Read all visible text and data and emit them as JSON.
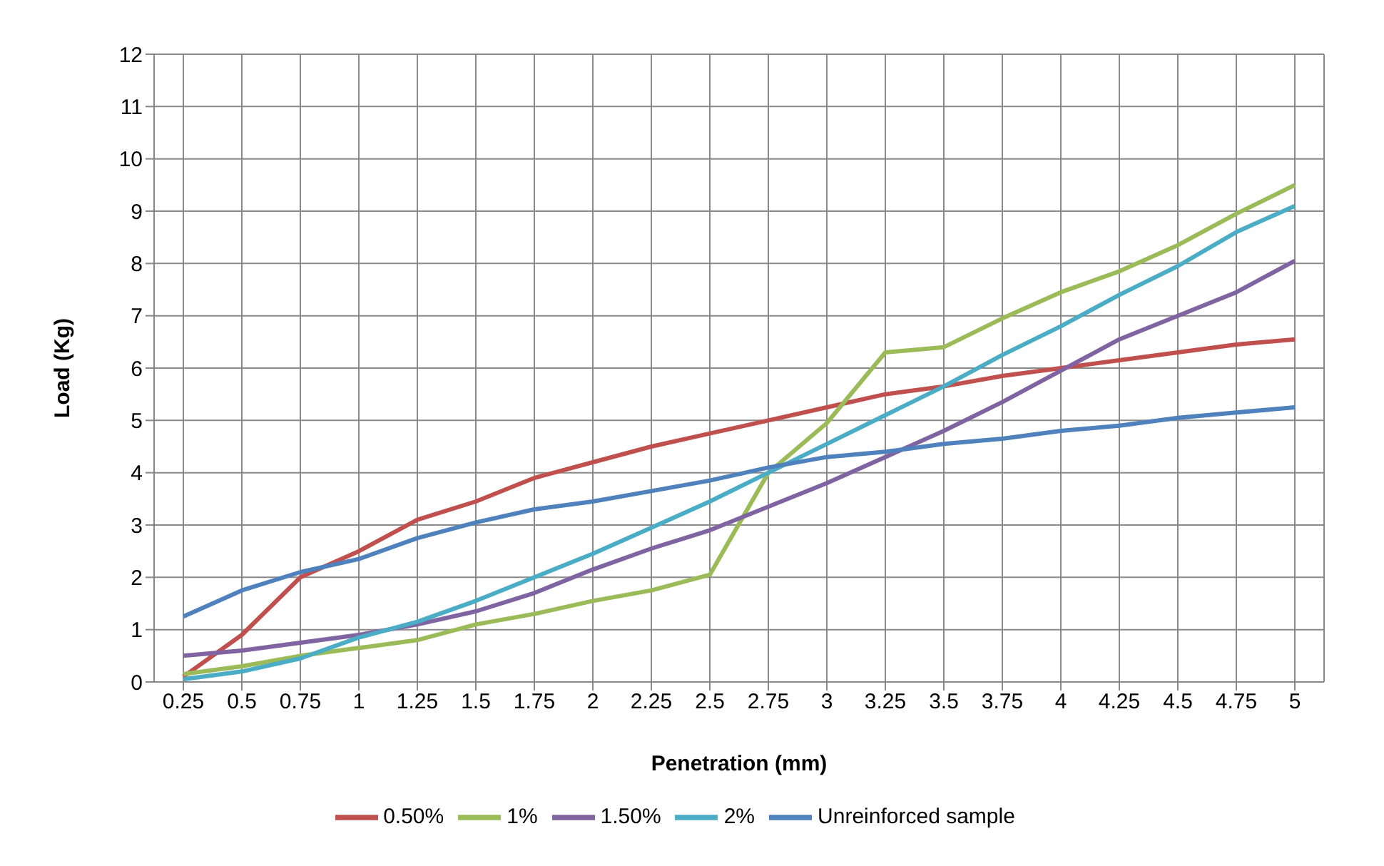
{
  "chart_data": {
    "type": "line",
    "xlabel": "Penetration (mm)",
    "ylabel": "Load (Kg)",
    "categories": [
      "0.25",
      "0.5",
      "0.75",
      "1",
      "1.25",
      "1.5",
      "1.75",
      "2",
      "2.25",
      "2.5",
      "2.75",
      "3",
      "3.25",
      "3.5",
      "3.75",
      "4",
      "4.25",
      "4.5",
      "4.75",
      "5"
    ],
    "series": [
      {
        "name": "0.50%",
        "color": "#c0504d",
        "values": [
          0.1,
          0.9,
          2.0,
          2.5,
          3.1,
          3.45,
          3.9,
          4.2,
          4.5,
          4.75,
          5.0,
          5.25,
          5.5,
          5.65,
          5.85,
          6.0,
          6.15,
          6.3,
          6.45,
          6.55
        ]
      },
      {
        "name": "1%",
        "color": "#9bbb59",
        "values": [
          0.15,
          0.3,
          0.5,
          0.65,
          0.8,
          1.1,
          1.3,
          1.55,
          1.75,
          2.05,
          4.0,
          4.95,
          6.3,
          6.4,
          6.95,
          7.45,
          7.85,
          8.35,
          8.95,
          9.5
        ]
      },
      {
        "name": "1.50%",
        "color": "#8064a2",
        "values": [
          0.5,
          0.6,
          0.75,
          0.9,
          1.1,
          1.35,
          1.7,
          2.15,
          2.55,
          2.9,
          3.35,
          3.8,
          4.3,
          4.8,
          5.35,
          5.95,
          6.55,
          7.0,
          7.45,
          8.05
        ]
      },
      {
        "name": "2%",
        "color": "#4bacc6",
        "values": [
          0.05,
          0.2,
          0.45,
          0.85,
          1.15,
          1.55,
          2.0,
          2.45,
          2.95,
          3.45,
          4.0,
          4.55,
          5.1,
          5.65,
          6.25,
          6.8,
          7.4,
          7.95,
          8.6,
          9.1
        ]
      },
      {
        "name": "Unreinforced sample",
        "color": "#4f81bd",
        "values": [
          1.25,
          1.75,
          2.1,
          2.35,
          2.75,
          3.05,
          3.3,
          3.45,
          3.65,
          3.85,
          4.1,
          4.3,
          4.4,
          4.55,
          4.65,
          4.8,
          4.9,
          5.05,
          5.15,
          5.25
        ]
      }
    ],
    "ylim": [
      0,
      12
    ],
    "yticks": [
      0,
      1,
      2,
      3,
      4,
      5,
      6,
      7,
      8,
      9,
      10,
      11,
      12
    ],
    "grid": true,
    "legend": "bottom",
    "marker": "none",
    "line_style": "solid"
  }
}
